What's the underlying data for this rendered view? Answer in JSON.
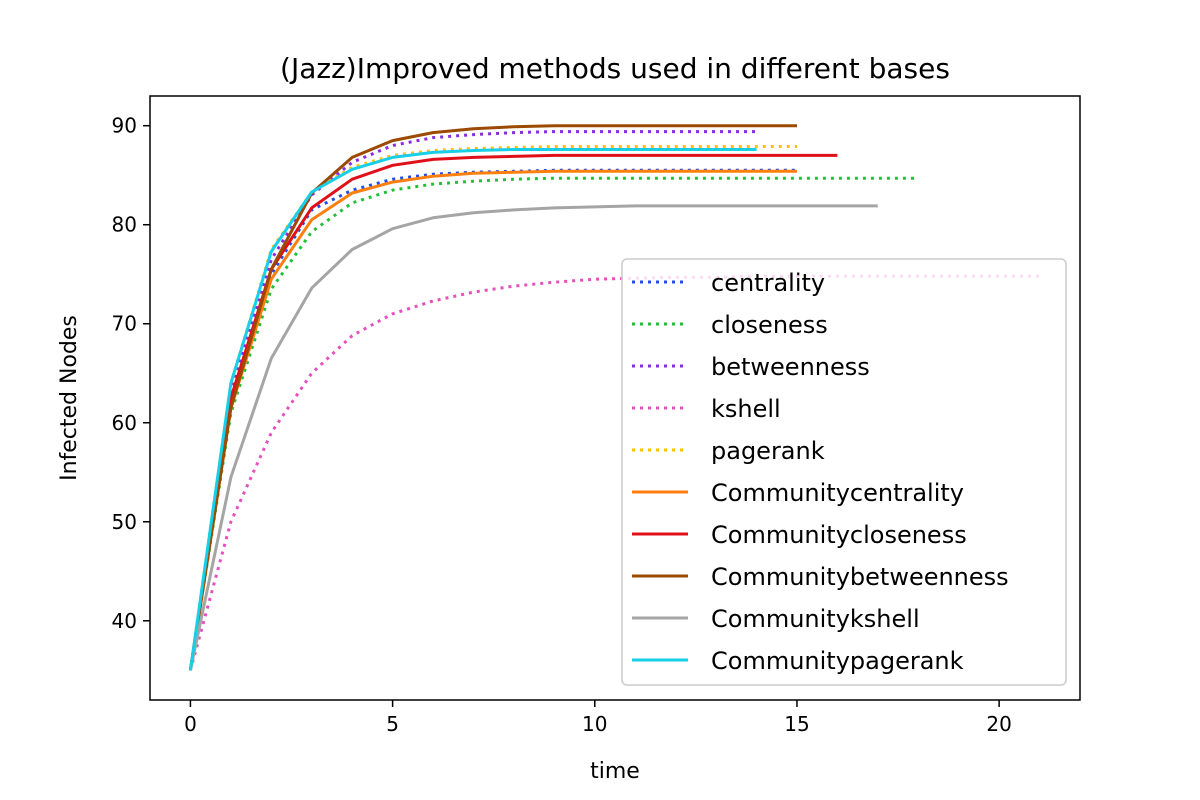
{
  "chart_data": {
    "type": "line",
    "title": "(Jazz)Improved methods used in different bases",
    "xlabel": "time",
    "ylabel": "Infected Nodes",
    "xlim": [
      -1,
      22
    ],
    "ylim": [
      32,
      93
    ],
    "xticks": [
      0,
      5,
      10,
      15,
      20
    ],
    "yticks": [
      40,
      50,
      60,
      70,
      80,
      90
    ],
    "legend_position": "lower-right",
    "series": [
      {
        "name": "centrality",
        "color": "#1f4fe6",
        "style": "dotted",
        "values": [
          35,
          62.5,
          75,
          81.5,
          83.5,
          84.6,
          85.1,
          85.3,
          85.4,
          85.5,
          85.5,
          85.5,
          85.5,
          85.5,
          85.5,
          85.5
        ]
      },
      {
        "name": "closeness",
        "color": "#22c03a",
        "style": "dotted",
        "values": [
          35,
          61,
          73.5,
          79.3,
          82.2,
          83.5,
          84.1,
          84.4,
          84.6,
          84.7,
          84.7,
          84.7,
          84.7,
          84.7,
          84.7,
          84.7,
          84.7,
          84.7,
          84.7
        ]
      },
      {
        "name": "betweenness",
        "color": "#8a2be2",
        "style": "dotted",
        "values": [
          35,
          63,
          76.5,
          83,
          86.3,
          88,
          88.8,
          89.1,
          89.3,
          89.4,
          89.4,
          89.4,
          89.4,
          89.4,
          89.4
        ]
      },
      {
        "name": "kshell",
        "color": "#e64fc0",
        "style": "dotted",
        "values": [
          35,
          50,
          59,
          65,
          68.8,
          71,
          72.3,
          73.2,
          73.8,
          74.2,
          74.5,
          74.6,
          74.7,
          74.7,
          74.8,
          74.8,
          74.8,
          74.8,
          74.8,
          74.8,
          74.8,
          74.8
        ]
      },
      {
        "name": "pagerank",
        "color": "#ffc107",
        "style": "dotted",
        "values": [
          35,
          64,
          77.5,
          83.3,
          85.8,
          87,
          87.5,
          87.7,
          87.8,
          87.9,
          87.9,
          87.9,
          87.9,
          87.9,
          87.9,
          87.9
        ]
      },
      {
        "name": "Communitycentrality",
        "color": "#ff7f0e",
        "style": "solid",
        "values": [
          35,
          61.5,
          74.5,
          80.5,
          83.2,
          84.3,
          84.9,
          85.2,
          85.3,
          85.4,
          85.4,
          85.4,
          85.4,
          85.4,
          85.4,
          85.4
        ]
      },
      {
        "name": "Communitycloseness",
        "color": "#e0101a",
        "style": "solid",
        "values": [
          35,
          62.5,
          75.5,
          81.7,
          84.6,
          86,
          86.6,
          86.8,
          86.9,
          87,
          87,
          87,
          87,
          87,
          87,
          87,
          87
        ]
      },
      {
        "name": "Communitybetweenness",
        "color": "#9b4a00",
        "style": "solid",
        "values": [
          35,
          61.5,
          75.5,
          83.2,
          86.8,
          88.5,
          89.3,
          89.7,
          89.9,
          90,
          90,
          90,
          90,
          90,
          90,
          90
        ]
      },
      {
        "name": "Communitykshell",
        "color": "#a5a5a5",
        "style": "solid",
        "values": [
          35,
          54.5,
          66.5,
          73.6,
          77.5,
          79.6,
          80.7,
          81.2,
          81.5,
          81.7,
          81.8,
          81.9,
          81.9,
          81.9,
          81.9,
          81.9,
          81.9,
          81.9
        ]
      },
      {
        "name": "Communitypagerank",
        "color": "#17cfe8",
        "style": "solid",
        "values": [
          35,
          64,
          77.3,
          83.3,
          85.6,
          86.8,
          87.3,
          87.5,
          87.6,
          87.6,
          87.6,
          87.6,
          87.6,
          87.6,
          87.6
        ]
      }
    ]
  }
}
